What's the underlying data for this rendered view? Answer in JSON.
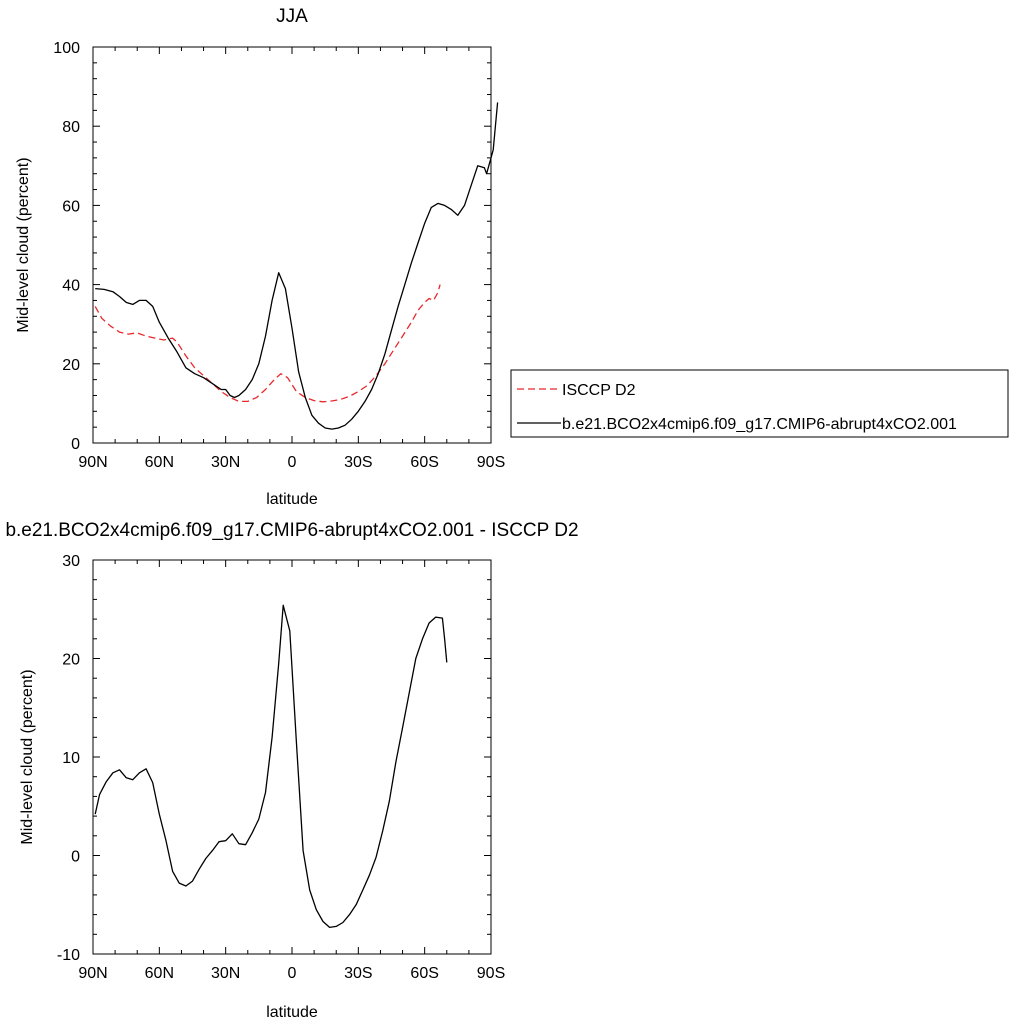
{
  "chart_data": [
    {
      "type": "line",
      "title": "JJA",
      "xlabel": "latitude",
      "ylabel": "Mid-level cloud (percent)",
      "xlim": [
        90,
        -90
      ],
      "ylim": [
        0,
        100
      ],
      "x_ticks": [
        {
          "value": 90,
          "label": "90N"
        },
        {
          "value": 60,
          "label": "60N"
        },
        {
          "value": 30,
          "label": "30N"
        },
        {
          "value": 0,
          "label": "0"
        },
        {
          "value": -30,
          "label": "30S"
        },
        {
          "value": -60,
          "label": "60S"
        },
        {
          "value": -90,
          "label": "90S"
        }
      ],
      "y_ticks": [
        0,
        20,
        40,
        60,
        80,
        100
      ],
      "legend": {
        "placement": "right",
        "entries": [
          "ISCCP D2",
          "b.e21.BCO2x4cmip6.f09_g17.CMIP6-abrupt4xCO2.001"
        ]
      },
      "series": [
        {
          "name": "ISCCP D2",
          "color": "#e8282b",
          "dash": true,
          "points": [
            [
              89,
              34.5
            ],
            [
              86,
              31.5
            ],
            [
              82,
              29.5
            ],
            [
              78,
              28
            ],
            [
              74,
              27.5
            ],
            [
              70,
              27.8
            ],
            [
              66,
              27
            ],
            [
              62,
              26.5
            ],
            [
              58,
              26
            ],
            [
              54,
              26.5
            ],
            [
              52,
              25.5
            ],
            [
              48,
              22
            ],
            [
              44,
              19
            ],
            [
              40,
              17
            ],
            [
              36,
              15
            ],
            [
              32,
              13
            ],
            [
              28,
              11.5
            ],
            [
              24,
              10.5
            ],
            [
              20,
              10.5
            ],
            [
              16,
              11.5
            ],
            [
              12,
              13.5
            ],
            [
              8,
              16
            ],
            [
              5,
              17.5
            ],
            [
              2,
              16.5
            ],
            [
              -2,
              13
            ],
            [
              -6,
              11.5
            ],
            [
              -10,
              10.7
            ],
            [
              -14,
              10.4
            ],
            [
              -18,
              10.6
            ],
            [
              -22,
              11
            ],
            [
              -26,
              11.8
            ],
            [
              -30,
              13
            ],
            [
              -34,
              14.5
            ],
            [
              -38,
              17
            ],
            [
              -42,
              20
            ],
            [
              -46,
              23.5
            ],
            [
              -50,
              27
            ],
            [
              -54,
              30.5
            ],
            [
              -57,
              33.5
            ],
            [
              -60,
              35.5
            ],
            [
              -62,
              36.5
            ],
            [
              -64,
              36
            ],
            [
              -66,
              38
            ],
            [
              -67,
              40
            ]
          ]
        },
        {
          "name": "b.e21.BCO2x4cmip6.f09_g17.CMIP6-abrupt4xCO2.001",
          "color": "#000000",
          "dash": false,
          "points": [
            [
              89,
              39
            ],
            [
              85,
              38.8
            ],
            [
              81,
              38.2
            ],
            [
              78,
              37
            ],
            [
              75,
              35.5
            ],
            [
              72,
              35
            ],
            [
              69,
              36
            ],
            [
              66,
              36
            ],
            [
              63,
              34.5
            ],
            [
              60,
              30.5
            ],
            [
              56,
              26.5
            ],
            [
              52,
              23
            ],
            [
              48,
              19
            ],
            [
              44,
              17.5
            ],
            [
              40,
              16.5
            ],
            [
              36,
              15
            ],
            [
              32,
              13.5
            ],
            [
              30,
              13.5
            ],
            [
              28,
              12
            ],
            [
              26,
              11.5
            ],
            [
              24,
              12
            ],
            [
              21,
              13.5
            ],
            [
              18,
              16
            ],
            [
              15,
              20
            ],
            [
              12,
              27
            ],
            [
              9,
              36
            ],
            [
              6,
              43
            ],
            [
              3,
              39
            ],
            [
              0,
              29
            ],
            [
              -3,
              18
            ],
            [
              -6,
              11.5
            ],
            [
              -9,
              7
            ],
            [
              -12,
              5
            ],
            [
              -15,
              3.8
            ],
            [
              -18,
              3.5
            ],
            [
              -21,
              3.8
            ],
            [
              -24,
              4.5
            ],
            [
              -27,
              6
            ],
            [
              -30,
              8
            ],
            [
              -33,
              10.5
            ],
            [
              -36,
              13.5
            ],
            [
              -39,
              17.5
            ],
            [
              -42,
              22.5
            ],
            [
              -45,
              28.5
            ],
            [
              -48,
              34.5
            ],
            [
              -51,
              40
            ],
            [
              -54,
              45.5
            ],
            [
              -57,
              50.5
            ],
            [
              -60,
              55.5
            ],
            [
              -63,
              59.5
            ],
            [
              -66,
              60.5
            ],
            [
              -69,
              60
            ],
            [
              -72,
              59
            ],
            [
              -75,
              57.5
            ],
            [
              -78,
              60
            ],
            [
              -81,
              65
            ],
            [
              -84,
              70
            ],
            [
              -87,
              69.5
            ],
            [
              -88,
              68
            ],
            [
              -90,
              72
            ],
            [
              -91,
              74
            ],
            [
              -93,
              86
            ]
          ]
        }
      ]
    },
    {
      "type": "line",
      "title": "b.e21.BCO2x4cmip6.f09_g17.CMIP6-abrupt4xCO2.001 - ISCCP D2",
      "xlabel": "latitude",
      "ylabel": "Mid-level cloud (percent)",
      "xlim": [
        90,
        -90
      ],
      "ylim": [
        -10,
        30
      ],
      "x_ticks": [
        {
          "value": 90,
          "label": "90N"
        },
        {
          "value": 60,
          "label": "60N"
        },
        {
          "value": 30,
          "label": "30N"
        },
        {
          "value": 0,
          "label": "0"
        },
        {
          "value": -30,
          "label": "30S"
        },
        {
          "value": -60,
          "label": "60S"
        },
        {
          "value": -90,
          "label": "90S"
        }
      ],
      "y_ticks": [
        -10,
        0,
        10,
        20,
        30
      ],
      "series": [
        {
          "color": "#000000",
          "dash": false,
          "points": [
            [
              89,
              4.2
            ],
            [
              87,
              6.2
            ],
            [
              84,
              7.5
            ],
            [
              81,
              8.4
            ],
            [
              78,
              8.7
            ],
            [
              75,
              7.9
            ],
            [
              72,
              7.7
            ],
            [
              69,
              8.4
            ],
            [
              66,
              8.8
            ],
            [
              63,
              7.4
            ],
            [
              60,
              4.2
            ],
            [
              57,
              1.5
            ],
            [
              54,
              -1.6
            ],
            [
              51,
              -2.8
            ],
            [
              48,
              -3.1
            ],
            [
              45,
              -2.6
            ],
            [
              42,
              -1.4
            ],
            [
              39,
              -0.3
            ],
            [
              36,
              0.5
            ],
            [
              33,
              1.4
            ],
            [
              30,
              1.5
            ],
            [
              27,
              2.2
            ],
            [
              24,
              1.2
            ],
            [
              21,
              1.1
            ],
            [
              18,
              2.3
            ],
            [
              15,
              3.7
            ],
            [
              12,
              6.4
            ],
            [
              9,
              12
            ],
            [
              6,
              19.5
            ],
            [
              4,
              25.4
            ],
            [
              1,
              22.8
            ],
            [
              -2,
              11.5
            ],
            [
              -5,
              0.5
            ],
            [
              -8,
              -3.5
            ],
            [
              -11,
              -5.5
            ],
            [
              -14,
              -6.7
            ],
            [
              -17,
              -7.3
            ],
            [
              -20,
              -7.2
            ],
            [
              -23,
              -6.8
            ],
            [
              -26,
              -6
            ],
            [
              -29,
              -5
            ],
            [
              -32,
              -3.5
            ],
            [
              -35,
              -2
            ],
            [
              -38,
              -0.2
            ],
            [
              -41,
              2.5
            ],
            [
              -44,
              5.5
            ],
            [
              -47,
              9.5
            ],
            [
              -50,
              13
            ],
            [
              -53,
              16.5
            ],
            [
              -56,
              20
            ],
            [
              -59,
              22
            ],
            [
              -62,
              23.6
            ],
            [
              -65,
              24.2
            ],
            [
              -68,
              24.1
            ],
            [
              -69,
              22
            ],
            [
              -70,
              19.6
            ]
          ]
        }
      ]
    }
  ]
}
